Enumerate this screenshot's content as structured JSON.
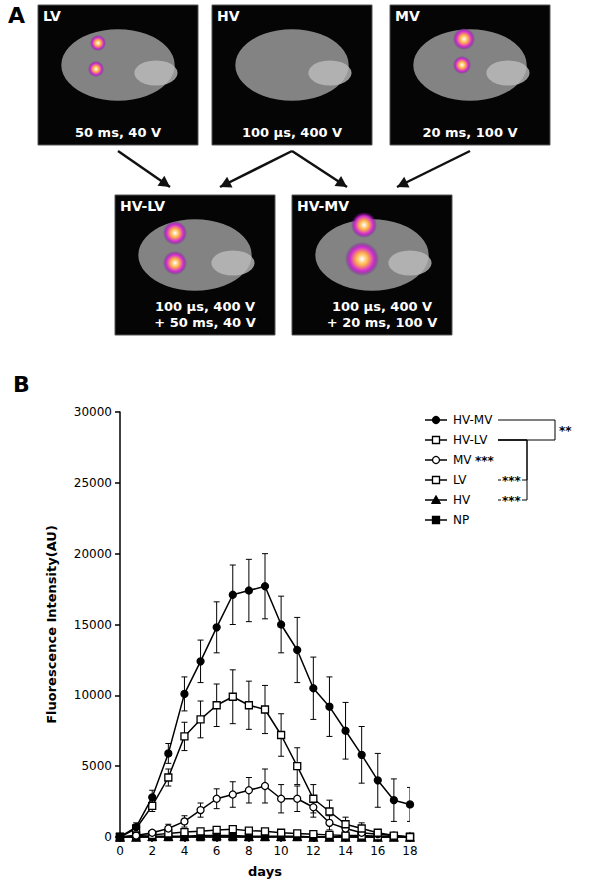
{
  "panel_a": {
    "label": "A",
    "images": [
      {
        "name": "LV",
        "caption": [
          "50 ms, 40 V"
        ]
      },
      {
        "name": "HV",
        "caption": [
          "100 µs, 400 V"
        ]
      },
      {
        "name": "MV",
        "caption": [
          "20 ms, 100 V"
        ]
      },
      {
        "name": "HV-LV",
        "caption": [
          "100 µs, 400 V",
          "+ 50 ms, 40 V"
        ]
      },
      {
        "name": "HV-MV",
        "caption": [
          "100 µs, 400 V",
          "+ 20 ms, 100 V"
        ]
      }
    ],
    "arrows": [
      [
        "LV",
        "HV-LV"
      ],
      [
        "HV",
        "HV-LV"
      ],
      [
        "HV",
        "HV-MV"
      ],
      [
        "MV",
        "HV-MV"
      ]
    ]
  },
  "chart_data": {
    "type": "line",
    "title": "B",
    "x_label": "days",
    "y_label": "Fluorescence Intensity(AU)",
    "x": [
      0,
      1,
      2,
      3,
      4,
      5,
      6,
      7,
      8,
      9,
      10,
      11,
      12,
      13,
      14,
      15,
      16,
      17,
      18
    ],
    "xlim": [
      0,
      18
    ],
    "xticks": [
      0,
      2,
      4,
      6,
      8,
      10,
      12,
      14,
      16,
      18
    ],
    "ylim": [
      0,
      30000
    ],
    "yticks": [
      0,
      5000,
      10000,
      15000,
      20000,
      25000,
      30000
    ],
    "grid": false,
    "legend": "right",
    "series": [
      {
        "name": "HV-MV",
        "color": "#000000",
        "marker": "filled_circle",
        "values": [
          0,
          700,
          2800,
          5900,
          10100,
          12400,
          14800,
          17100,
          17400,
          17700,
          15000,
          13200,
          10500,
          9200,
          7500,
          5800,
          4000,
          2600,
          2300
        ],
        "errors": [
          0,
          300,
          500,
          700,
          1200,
          1500,
          1800,
          2100,
          2200,
          2300,
          2000,
          2300,
          2200,
          2100,
          2000,
          2000,
          1900,
          1500,
          1200
        ]
      },
      {
        "name": "HV-LV",
        "color": "#000000",
        "marker": "open_square",
        "values": [
          0,
          600,
          2200,
          4200,
          7100,
          8300,
          9300,
          9900,
          9300,
          9000,
          7200,
          5000,
          2700,
          1800,
          900,
          600,
          300,
          100,
          0
        ],
        "errors": [
          0,
          200,
          400,
          600,
          1000,
          1300,
          1500,
          1900,
          1700,
          1700,
          1500,
          1300,
          1000,
          800,
          500,
          400,
          200,
          100,
          50
        ]
      },
      {
        "name": "MV",
        "color": "#000000",
        "marker": "open_circle",
        "values": [
          0,
          100,
          300,
          600,
          1100,
          1900,
          2700,
          3000,
          3300,
          3600,
          2700,
          2700,
          2100,
          1000,
          600,
          300,
          200,
          100,
          0
        ],
        "errors": [
          0,
          50,
          150,
          300,
          400,
          500,
          700,
          900,
          900,
          1200,
          1000,
          900,
          700,
          500,
          300,
          200,
          100,
          100,
          50
        ]
      },
      {
        "name": "LV",
        "color": "#000000",
        "marker": "open_square",
        "values": [
          0,
          100,
          150,
          250,
          350,
          400,
          500,
          550,
          450,
          400,
          300,
          250,
          200,
          150,
          100,
          100,
          50,
          50,
          0
        ],
        "errors": [
          0,
          50,
          50,
          100,
          100,
          150,
          150,
          200,
          150,
          150,
          100,
          100,
          100,
          50,
          50,
          50,
          50,
          50,
          0
        ]
      },
      {
        "name": "HV",
        "color": "#000000",
        "marker": "filled_triangle",
        "values": [
          0,
          0,
          50,
          50,
          50,
          100,
          100,
          100,
          50,
          50,
          50,
          50,
          0,
          0,
          0,
          0,
          0,
          0,
          0
        ],
        "errors": [
          0,
          0,
          50,
          50,
          50,
          50,
          50,
          50,
          50,
          50,
          50,
          50,
          0,
          0,
          0,
          0,
          0,
          0,
          0
        ]
      },
      {
        "name": "NP",
        "color": "#000000",
        "marker": "filled_square",
        "values": [
          0,
          0,
          0,
          0,
          0,
          0,
          0,
          0,
          0,
          0,
          0,
          0,
          0,
          0,
          0,
          0,
          0,
          0,
          0
        ]
      }
    ],
    "annotations": [
      {
        "text": "**",
        "from": "HV-MV",
        "to": "HV-LV"
      },
      {
        "text": "***",
        "series": "MV"
      },
      {
        "text": "***",
        "from": "HV-LV",
        "to": "LV"
      },
      {
        "text": "***",
        "from": "HV-LV",
        "to": "HV"
      }
    ]
  }
}
